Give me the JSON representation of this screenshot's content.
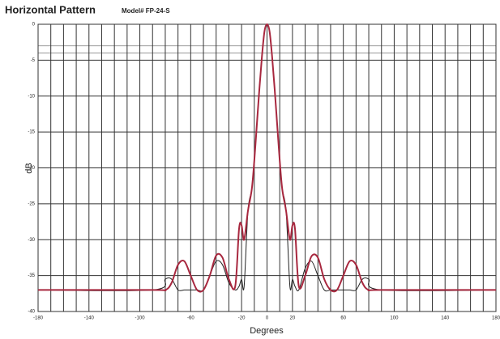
{
  "chart_data": {
    "type": "line",
    "title": "Horizontal Pattern",
    "subtitle": "Model# FP-24-S",
    "x_label": "Degrees",
    "y_label": "dB",
    "x": [
      -180,
      -90,
      -80,
      -75,
      -70,
      -65,
      -60,
      -55,
      -50,
      -45,
      -40,
      -35,
      -30,
      -25,
      -22,
      -20,
      -18,
      -15,
      -12,
      -10,
      -8,
      -6,
      -4,
      -2,
      0,
      2,
      4,
      6,
      8,
      10,
      12,
      15,
      18,
      20,
      22,
      25,
      30,
      35,
      40,
      45,
      50,
      55,
      60,
      65,
      70,
      75,
      80,
      90,
      180
    ],
    "series": [
      {
        "color": "#a8283f",
        "values": [
          -37,
          -37,
          -37,
          -36,
          -33.5,
          -33,
          -35,
          -37,
          -37,
          -35,
          -32.2,
          -32.5,
          -35.5,
          -36.5,
          -28.5,
          -28,
          -30,
          -26,
          -23,
          -19,
          -14,
          -9,
          -4.5,
          -1,
          0,
          -1,
          -4.5,
          -9,
          -14,
          -19,
          -23,
          -26,
          -30,
          -28,
          -28.5,
          -36.5,
          -35,
          -32.3,
          -32.5,
          -35.5,
          -37,
          -37,
          -35,
          -33,
          -33.5,
          -36,
          -37,
          -37,
          -37
        ]
      },
      {
        "color": "#222222",
        "values": [
          -37,
          -37,
          -35.5,
          -35.5,
          -37,
          -37,
          -37,
          -37,
          -37,
          -35,
          -33,
          -33.5,
          -36,
          -37,
          -36.5,
          -35.5,
          -36.5,
          -26,
          -23,
          -19,
          -14,
          -9,
          -4.5,
          -1,
          0,
          -1,
          -4.5,
          -9,
          -14,
          -19,
          -23,
          -26,
          -36.5,
          -35.5,
          -36.5,
          -37,
          -34,
          -33,
          -35,
          -37,
          -37,
          -37,
          -37,
          -37,
          -37,
          -35.5,
          -35.5,
          -37,
          -37
        ]
      }
    ],
    "xlim": [
      -180,
      180
    ],
    "ylim": [
      -40,
      0
    ],
    "xticks": [
      -180,
      -140,
      -100,
      -60,
      -20,
      0,
      20,
      60,
      100,
      140,
      180
    ],
    "minor_xticks": [
      -170,
      -160,
      -150,
      -130,
      -120,
      -110,
      -90,
      -80,
      -70,
      -50,
      -40,
      -30,
      -10,
      10,
      30,
      40,
      50,
      70,
      80,
      90,
      110,
      120,
      130,
      150,
      160,
      170
    ],
    "yticks": [
      0,
      -5,
      -10,
      -15,
      -20,
      -25,
      -30,
      -35,
      -40
    ],
    "reference_lines": [
      -3,
      -4
    ],
    "grid": true
  }
}
